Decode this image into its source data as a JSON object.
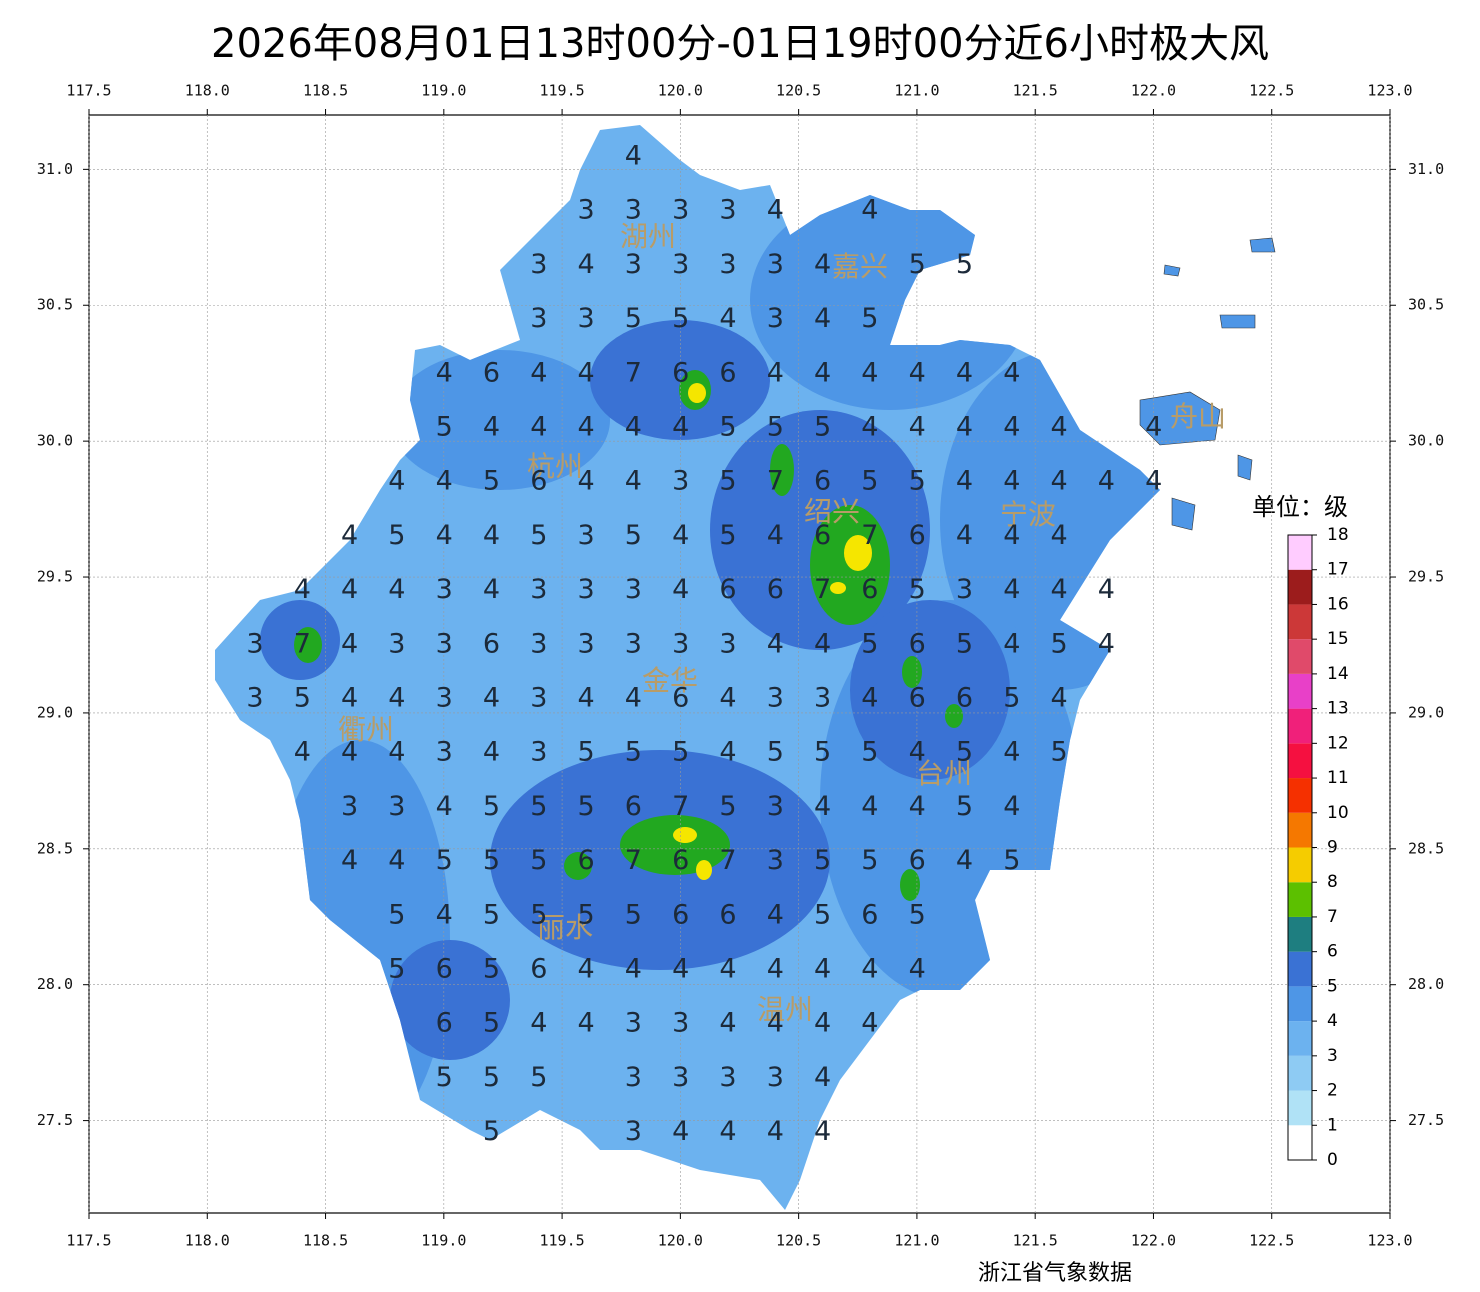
{
  "title": "2026年08月01日13时00分-01日19时00分近6小时极大风",
  "xlim": [
    117.5,
    123.0
  ],
  "ylim": [
    27.16,
    31.2
  ],
  "xticks": [
    117.5,
    {
      "value": 118,
      "label": "118.0"
    },
    118.5,
    {
      "value": 119,
      "label": "119.0"
    },
    119.5,
    {
      "value": 120,
      "label": "120.0"
    },
    120.5,
    {
      "value": 121,
      "label": "121.0"
    },
    121.5,
    {
      "value": 122,
      "label": "122.0"
    },
    122.5,
    {
      "value": 123,
      "label": "123.0"
    }
  ],
  "yticks": [
    27.5,
    {
      "value": 28,
      "label": "28.0"
    },
    28.5,
    {
      "value": 29,
      "label": "29.0"
    },
    29.5,
    {
      "value": 30,
      "label": "30.0"
    },
    30.5,
    {
      "value": 31,
      "label": "31.0"
    }
  ],
  "grid": true,
  "grid_values": [
    [
      null,
      null,
      null,
      null,
      null,
      null,
      null,
      null,
      4,
      null,
      null,
      null,
      null,
      null,
      null,
      null,
      null,
      null,
      null,
      null
    ],
    [
      null,
      null,
      null,
      null,
      null,
      null,
      null,
      3,
      3,
      3,
      3,
      4,
      null,
      4,
      null,
      null,
      null,
      null,
      null,
      null
    ],
    [
      null,
      null,
      null,
      null,
      null,
      null,
      3,
      4,
      3,
      3,
      3,
      3,
      4,
      null,
      5,
      5,
      null,
      null,
      null,
      null
    ],
    [
      null,
      null,
      null,
      null,
      null,
      null,
      3,
      3,
      5,
      5,
      4,
      3,
      4,
      5,
      null,
      null,
      null,
      null,
      null,
      null
    ],
    [
      null,
      null,
      null,
      null,
      4,
      6,
      4,
      4,
      7,
      6,
      6,
      4,
      4,
      4,
      4,
      4,
      4,
      null,
      null,
      null
    ],
    [
      null,
      null,
      null,
      null,
      5,
      4,
      4,
      4,
      4,
      4,
      5,
      5,
      5,
      4,
      4,
      4,
      4,
      4,
      null,
      4
    ],
    [
      null,
      null,
      null,
      4,
      4,
      5,
      6,
      4,
      4,
      3,
      5,
      7,
      6,
      5,
      5,
      4,
      4,
      4,
      4,
      4
    ],
    [
      null,
      null,
      4,
      5,
      4,
      4,
      5,
      3,
      5,
      4,
      5,
      4,
      6,
      7,
      6,
      4,
      4,
      4,
      null,
      null
    ],
    [
      null,
      4,
      4,
      4,
      3,
      4,
      3,
      3,
      3,
      4,
      6,
      6,
      7,
      6,
      5,
      3,
      4,
      4,
      4,
      null
    ],
    [
      3,
      7,
      4,
      3,
      3,
      6,
      3,
      3,
      3,
      3,
      3,
      4,
      4,
      5,
      6,
      5,
      4,
      5,
      4,
      null
    ],
    [
      3,
      5,
      4,
      4,
      3,
      4,
      3,
      4,
      4,
      6,
      4,
      3,
      3,
      4,
      6,
      6,
      5,
      4,
      null,
      null
    ],
    [
      null,
      4,
      4,
      4,
      3,
      4,
      3,
      5,
      5,
      5,
      4,
      5,
      5,
      5,
      4,
      5,
      4,
      5,
      null,
      null
    ],
    [
      null,
      null,
      3,
      3,
      4,
      5,
      5,
      5,
      6,
      7,
      5,
      3,
      4,
      4,
      4,
      5,
      4,
      null,
      null,
      null
    ],
    [
      null,
      null,
      4,
      4,
      5,
      5,
      5,
      6,
      7,
      6,
      7,
      3,
      5,
      5,
      6,
      4,
      5,
      null,
      null,
      null
    ],
    [
      null,
      null,
      null,
      5,
      4,
      5,
      5,
      5,
      5,
      6,
      6,
      4,
      5,
      6,
      5,
      null,
      null,
      null,
      null,
      null
    ],
    [
      null,
      null,
      null,
      5,
      6,
      5,
      6,
      4,
      4,
      4,
      4,
      4,
      4,
      4,
      4,
      null,
      null,
      null,
      null,
      null
    ],
    [
      null,
      null,
      null,
      null,
      6,
      5,
      4,
      4,
      3,
      3,
      4,
      4,
      4,
      4,
      null,
      null,
      null,
      null,
      null,
      null
    ],
    [
      null,
      null,
      null,
      null,
      5,
      5,
      5,
      null,
      3,
      3,
      3,
      3,
      4,
      null,
      null,
      null,
      null,
      null,
      null,
      null
    ],
    [
      null,
      null,
      null,
      null,
      null,
      5,
      null,
      null,
      3,
      4,
      4,
      4,
      4,
      null,
      null,
      null,
      null,
      null,
      null,
      null
    ]
  ],
  "cities": [
    "湖州",
    "嘉兴",
    "舟山",
    "杭州",
    "绍兴",
    "宁波",
    "金华",
    "衢州",
    "台州",
    "丽水",
    "温州"
  ],
  "legend": {
    "unit": "单位：级",
    "levels": [
      0,
      1,
      2,
      3,
      4,
      5,
      6,
      7,
      8,
      9,
      10,
      11,
      12,
      13,
      14,
      15,
      16,
      17,
      18
    ],
    "colors": [
      "#ffffff",
      "#b0e2f6",
      "#8ecbf3",
      "#6cb2ef",
      "#4e96e6",
      "#3a72d4",
      "#1e7e80",
      "#5cc000",
      "#f5cc00",
      "#f57800",
      "#f53000",
      "#f51040",
      "#f0207a",
      "#e840c8",
      "#e04a6a",
      "#cc3838",
      "#9c1c1c",
      "#ffccff"
    ]
  },
  "footer": "浙江省气象数据"
}
